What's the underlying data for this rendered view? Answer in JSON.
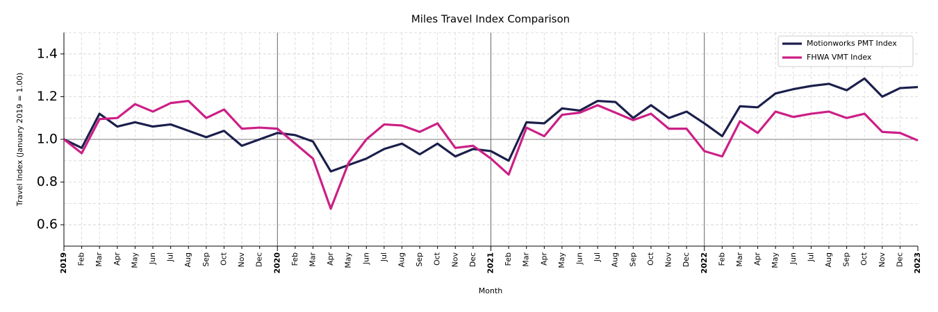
{
  "chart_data": {
    "type": "line",
    "title": "Miles Travel Index Comparison",
    "x_label": "Month",
    "y_label": "Travel Index (January 2019 = 1.00)",
    "categories": [
      "2019",
      "Feb",
      "Mar",
      "Apr",
      "May",
      "Jun",
      "Jul",
      "Aug",
      "Sep",
      "Oct",
      "Nov",
      "Dec",
      "2020",
      "Feb",
      "Mar",
      "Apr",
      "May",
      "Jun",
      "Jul",
      "Aug",
      "Sep",
      "Oct",
      "Nov",
      "Dec",
      "2021",
      "Feb",
      "Mar",
      "Apr",
      "May",
      "Jun",
      "Jul",
      "Aug",
      "Sep",
      "Oct",
      "Nov",
      "Dec",
      "2022",
      "Feb",
      "Mar",
      "Apr",
      "May",
      "Jun",
      "Jul",
      "Aug",
      "Sep",
      "Oct",
      "Nov",
      "Dec",
      "2023"
    ],
    "series": [
      {
        "name": "Motionworks PMT Index",
        "color": "#1b1f4b",
        "values": [
          1.0,
          0.96,
          1.12,
          1.06,
          1.08,
          1.06,
          1.07,
          1.04,
          1.01,
          1.04,
          0.97,
          1.0,
          1.03,
          1.02,
          0.99,
          0.85,
          0.88,
          0.91,
          0.955,
          0.98,
          0.93,
          0.98,
          0.92,
          0.955,
          0.945,
          0.9,
          1.08,
          1.075,
          1.145,
          1.135,
          1.18,
          1.175,
          1.1,
          1.16,
          1.1,
          1.13,
          1.075,
          1.015,
          1.155,
          1.15,
          1.215,
          1.235,
          1.25,
          1.26,
          1.23,
          1.285,
          1.2,
          1.24,
          1.245
        ]
      },
      {
        "name": "FHWA VMT Index",
        "color": "#cc1f86",
        "values": [
          1.0,
          0.935,
          1.095,
          1.1,
          1.165,
          1.13,
          1.17,
          1.18,
          1.1,
          1.14,
          1.05,
          1.055,
          1.05,
          0.98,
          0.91,
          0.675,
          0.89,
          1.0,
          1.07,
          1.065,
          1.035,
          1.075,
          0.96,
          0.97,
          0.91,
          0.835,
          1.055,
          1.015,
          1.115,
          1.125,
          1.16,
          1.125,
          1.09,
          1.12,
          1.05,
          1.05,
          0.945,
          0.92,
          1.085,
          1.03,
          1.13,
          1.105,
          1.12,
          1.13,
          1.1,
          1.12,
          1.035,
          1.03,
          0.995
        ]
      }
    ],
    "ylim": [
      0.5,
      1.5
    ],
    "yticks": [
      0.6,
      0.8,
      {
        "value": 1,
        "label": "1.0"
      },
      1.2,
      1.4
    ],
    "minor_yticks": [
      0.7,
      0.9,
      1.1,
      1.3,
      1.5
    ],
    "reference_line": 1,
    "grid": true,
    "legend": "upper right"
  }
}
